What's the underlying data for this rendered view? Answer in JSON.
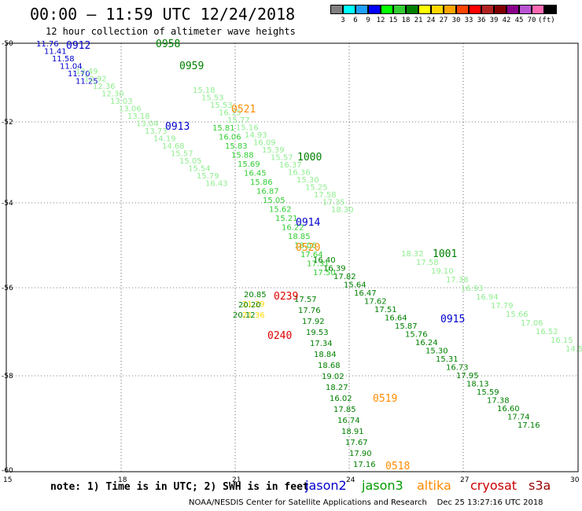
{
  "title": "00:00 – 11:59 UTC 12/24/2018",
  "subtitle": "12 hour collection of altimeter wave heights",
  "scale": {
    "colors": [
      "#808080",
      "#00ffff",
      "#1ea0ff",
      "#0000ff",
      "#00ff00",
      "#32cd32",
      "#008000",
      "#ffff00",
      "#ffd700",
      "#ffa500",
      "#ff4500",
      "#ff0000",
      "#b22222",
      "#800000",
      "#8b008b",
      "#ba55d3",
      "#ff69b4",
      "#000000"
    ],
    "labels": [
      "3",
      "6",
      "9",
      "12",
      "15",
      "18",
      "21",
      "24",
      "27",
      "30",
      "33",
      "36",
      "39",
      "42",
      "45",
      "70",
      "(ft)"
    ]
  },
  "axes": {
    "x_ticks": [
      "15",
      "18",
      "21",
      "24",
      "27",
      "30"
    ],
    "y_ticks": [
      "-50",
      "-52",
      "-54",
      "-56",
      "-58",
      "-60"
    ]
  },
  "tracks": [
    {
      "color": "#0000cc",
      "values": [
        "11.76",
        "11.41",
        "11.58",
        "11.04",
        "11.70",
        "11.25"
      ]
    },
    {
      "color": "#90ee90",
      "values": [
        "12.49",
        "12.92",
        "12.36",
        "12.30",
        "13.03",
        "13.06",
        "13.18",
        "13.04",
        "13.73",
        "14.19",
        "14.68",
        "15.57",
        "15.05",
        "15.54",
        "15.79",
        "16.43"
      ]
    },
    {
      "color": "#32cd32",
      "values": [
        "15.81",
        "16.06",
        "15.83",
        "15.88",
        "15.69",
        "16.45",
        "15.86",
        "16.87",
        "15.05",
        "15.62",
        "15.21",
        "16.22",
        "18.85",
        "18.06",
        "17.64",
        "17.31",
        "17.50"
      ]
    },
    {
      "color": "#90ee90",
      "values": [
        "15.18",
        "15.53",
        "15.53",
        "16.15",
        "15.77",
        "15.16",
        "14.93",
        "16.09",
        "15.39",
        "15.57",
        "16.37",
        "16.36",
        "15.30",
        "15.25",
        "17.58",
        "17.35",
        "18.30"
      ]
    },
    {
      "color": "#008000",
      "values": [
        "17.57",
        "17.76",
        "17.92",
        "19.53",
        "17.34",
        "18.84",
        "18.68",
        "19.02",
        "18.27",
        "16.02",
        "17.85",
        "16.74",
        "18.91",
        "17.67",
        "17.90",
        "17.16"
      ]
    },
    {
      "color": "#008000",
      "values": [
        "16.40",
        "16.39",
        "17.82",
        "15.64",
        "16.47",
        "17.62",
        "17.51",
        "16.64",
        "15.87",
        "15.76",
        "16.24",
        "15.30",
        "15.31",
        "16.73",
        "17.95",
        "18.13",
        "15.59",
        "17.38",
        "16.60",
        "17.74",
        "17.16"
      ]
    },
    {
      "color": "#ffd700",
      "values": [
        "21.29",
        "21.36"
      ]
    },
    {
      "color": "#008000",
      "values": [
        "20.85",
        "20.20",
        "20.12"
      ]
    },
    {
      "color": "#90ee90",
      "values": [
        "18.32",
        "17.58",
        "19.10",
        "17.38",
        "16.93",
        "16.94",
        "17.79",
        "15.66",
        "17.06",
        "16.52",
        "16.15",
        "14.55"
      ]
    }
  ],
  "labels": [
    {
      "text": "0912",
      "color": "#0000cc"
    },
    {
      "text": "0958",
      "color": "#008000"
    },
    {
      "text": "0959",
      "color": "#008000"
    },
    {
      "text": "0521",
      "color": "#ff8c00"
    },
    {
      "text": "0913",
      "color": "#0000cc"
    },
    {
      "text": "1000",
      "color": "#008000"
    },
    {
      "text": "0914",
      "color": "#0000cc"
    },
    {
      "text": "0520",
      "color": "#ff8c00"
    },
    {
      "text": "1001",
      "color": "#008000"
    },
    {
      "text": "0239",
      "color": "#dd0000"
    },
    {
      "text": "0915",
      "color": "#0000cc"
    },
    {
      "text": "0240",
      "color": "#dd0000"
    },
    {
      "text": "0519",
      "color": "#ff8c00"
    },
    {
      "text": "0518",
      "color": "#ff8c00"
    }
  ],
  "note": "note: 1) Time is in UTC; 2) SWH is in feet",
  "satellites": [
    {
      "name": "jason2",
      "color": "#0000cc"
    },
    {
      "name": "jason3",
      "color": "#009900"
    },
    {
      "name": "altika",
      "color": "#ff8c00"
    },
    {
      "name": "cryosat",
      "color": "#cc0000"
    },
    {
      "name": "s3a",
      "color": "#990000"
    }
  ],
  "credit": "NOAA/NESDIS Center for Satellite Applications and Research    Dec 25 13:27:16 UTC 2018"
}
